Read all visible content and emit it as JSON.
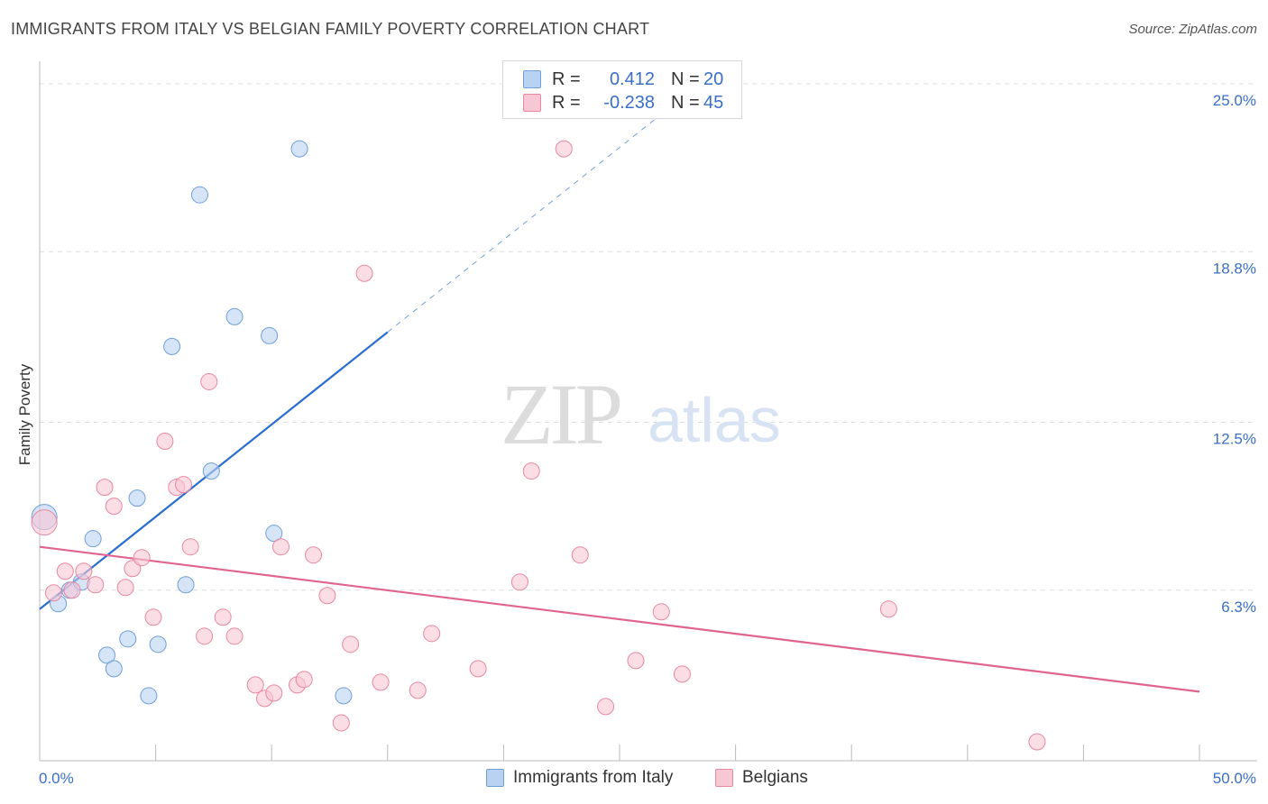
{
  "title": "IMMIGRANTS FROM ITALY VS BELGIAN FAMILY POVERTY CORRELATION CHART",
  "source": "Source: ZipAtlas.com",
  "watermark": {
    "zip": "ZIP",
    "atlas": "atlas"
  },
  "legend": {
    "series1": {
      "r_label": "R =",
      "r_value": "0.412",
      "n_label": "N =",
      "n_value": "20"
    },
    "series2": {
      "r_label": "R =",
      "r_value": "-0.238",
      "n_label": "N =",
      "n_value": "45"
    }
  },
  "colors": {
    "blue_fill": "#b9d2f2",
    "blue_stroke": "#6f9fd8",
    "blue_line": "#2a6dd0",
    "pink_fill": "#f8c7d6",
    "pink_stroke": "#e8889f",
    "pink_line": "#e0648e",
    "tick_label": "#3a6fc6",
    "grid": "#dddddd"
  },
  "chart_data": {
    "type": "scatter",
    "title": "IMMIGRANTS FROM ITALY VS BELGIAN FAMILY POVERTY CORRELATION CHART",
    "xlabel": "",
    "ylabel": "Family Poverty",
    "xlim": [
      0,
      50
    ],
    "ylim": [
      0,
      25.5
    ],
    "x_tick_labels": [
      "0.0%",
      "50.0%"
    ],
    "y_ticks": [
      6.3,
      12.5,
      18.8,
      25.0
    ],
    "y_tick_labels": [
      "6.3%",
      "12.5%",
      "18.8%",
      "25.0%"
    ],
    "grid": "horizontal dashed",
    "legend_position": "top-center",
    "series": [
      {
        "name": "Immigrants from Italy",
        "color": "#b9d2f2",
        "points": [
          [
            0.2,
            9.0,
            14
          ],
          [
            0.8,
            5.8,
            9
          ],
          [
            1.3,
            6.3,
            9
          ],
          [
            1.8,
            6.6,
            9
          ],
          [
            2.3,
            8.2,
            9
          ],
          [
            2.9,
            3.9,
            9
          ],
          [
            3.2,
            3.4,
            9
          ],
          [
            3.8,
            4.5,
            9
          ],
          [
            4.2,
            9.7,
            9
          ],
          [
            4.7,
            2.4,
            9
          ],
          [
            5.1,
            4.3,
            9
          ],
          [
            5.7,
            15.3,
            9
          ],
          [
            6.3,
            6.5,
            9
          ],
          [
            6.9,
            20.9,
            9
          ],
          [
            7.4,
            10.7,
            9
          ],
          [
            8.4,
            16.4,
            9
          ],
          [
            9.9,
            15.7,
            9
          ],
          [
            10.1,
            8.4,
            9
          ],
          [
            11.2,
            22.6,
            9
          ],
          [
            13.1,
            2.4,
            9
          ]
        ],
        "trend": {
          "x_start": 0.0,
          "x_solid_end": 15.0,
          "x_dash_end": 27.0,
          "intercept": 5.6,
          "slope": 0.682
        }
      },
      {
        "name": "Belgians",
        "color": "#f8c7d6",
        "points": [
          [
            0.2,
            8.8,
            14
          ],
          [
            0.6,
            6.2,
            9
          ],
          [
            1.1,
            7.0,
            9
          ],
          [
            1.4,
            6.3,
            9
          ],
          [
            1.9,
            7.0,
            9
          ],
          [
            2.4,
            6.5,
            9
          ],
          [
            2.8,
            10.1,
            9
          ],
          [
            3.2,
            9.4,
            9
          ],
          [
            3.7,
            6.4,
            9
          ],
          [
            4.0,
            7.1,
            9
          ],
          [
            4.4,
            7.5,
            9
          ],
          [
            4.9,
            5.3,
            9
          ],
          [
            5.4,
            11.8,
            9
          ],
          [
            5.9,
            10.1,
            9
          ],
          [
            6.2,
            10.2,
            9
          ],
          [
            6.5,
            7.9,
            9
          ],
          [
            7.1,
            4.6,
            9
          ],
          [
            7.3,
            14.0,
            9
          ],
          [
            7.9,
            5.3,
            9
          ],
          [
            8.4,
            4.6,
            9
          ],
          [
            9.3,
            2.8,
            9
          ],
          [
            9.7,
            2.3,
            9
          ],
          [
            10.1,
            2.5,
            9
          ],
          [
            10.4,
            7.9,
            9
          ],
          [
            11.1,
            2.8,
            9
          ],
          [
            11.4,
            3.0,
            9
          ],
          [
            11.8,
            7.6,
            9
          ],
          [
            12.4,
            6.1,
            9
          ],
          [
            13.0,
            1.4,
            9
          ],
          [
            13.4,
            4.3,
            9
          ],
          [
            14.0,
            18.0,
            9
          ],
          [
            14.7,
            2.9,
            9
          ],
          [
            16.3,
            2.6,
            9
          ],
          [
            16.9,
            4.7,
            9
          ],
          [
            18.9,
            3.4,
            9
          ],
          [
            20.7,
            6.6,
            9
          ],
          [
            21.2,
            10.7,
            9
          ],
          [
            22.6,
            22.6,
            9
          ],
          [
            23.3,
            7.6,
            9
          ],
          [
            24.4,
            2.0,
            9
          ],
          [
            25.7,
            3.7,
            9
          ],
          [
            26.8,
            5.5,
            9
          ],
          [
            27.7,
            3.2,
            9
          ],
          [
            36.6,
            5.6,
            9
          ],
          [
            43.0,
            0.7,
            9
          ]
        ],
        "trend": {
          "x_start": 0.0,
          "x_end": 50.0,
          "intercept": 7.9,
          "slope": -0.107
        }
      }
    ]
  }
}
